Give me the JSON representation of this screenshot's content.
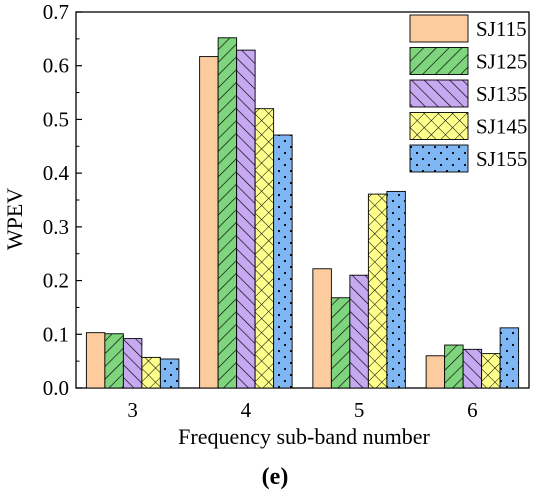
{
  "chart_data": {
    "type": "bar",
    "categories": [
      "3",
      "4",
      "5",
      "6"
    ],
    "series": [
      {
        "name": "SJ115",
        "values": [
          0.103,
          0.617,
          0.222,
          0.06
        ],
        "color": "#FCCB9E",
        "pattern": "solid"
      },
      {
        "name": "SJ125",
        "values": [
          0.101,
          0.652,
          0.168,
          0.08
        ],
        "color": "#7ED57E",
        "pattern": "diag-right"
      },
      {
        "name": "SJ135",
        "values": [
          0.092,
          0.629,
          0.21,
          0.072
        ],
        "color": "#C6A9F0",
        "pattern": "diag-left"
      },
      {
        "name": "SJ145",
        "values": [
          0.057,
          0.52,
          0.361,
          0.064
        ],
        "color": "#FFFF8C",
        "pattern": "crosshatch"
      },
      {
        "name": "SJ155",
        "values": [
          0.054,
          0.471,
          0.366,
          0.112
        ],
        "color": "#7FB7F5",
        "pattern": "dots"
      }
    ],
    "xlabel": "Frequency sub-band number",
    "ylabel": "WPEV",
    "ylim": [
      0,
      0.7
    ],
    "yticks": [
      "0.0",
      "0.1",
      "0.2",
      "0.3",
      "0.4",
      "0.5",
      "0.6",
      "0.7"
    ],
    "legend_position": "top-right",
    "grid": false
  },
  "panel_label": "(e)"
}
